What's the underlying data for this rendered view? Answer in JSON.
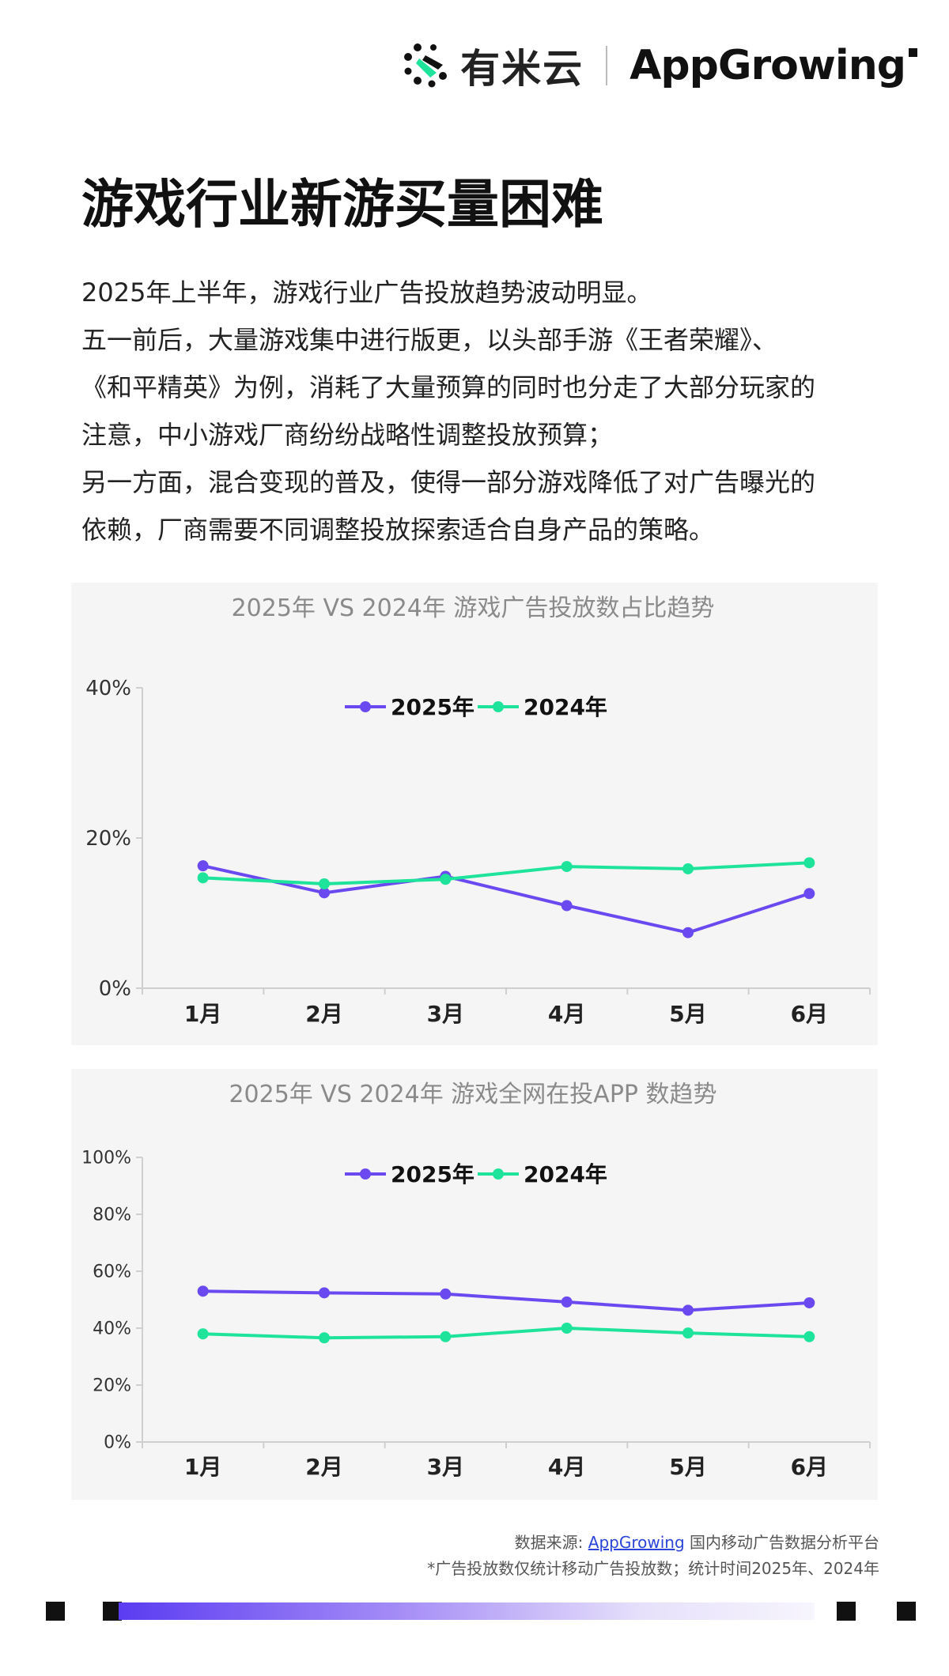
{
  "header": {
    "brand_cn": "有米云",
    "brand_en": "AppGrowing"
  },
  "title": "游戏行业新游买量困难",
  "intro": [
    "2025年上半年，游戏行业广告投放趋势波动明显。",
    "五一前后，大量游戏集中进行版更，以头部手游《王者荣耀》、",
    "《和平精英》为例，消耗了大量预算的同时也分走了大部分玩家的",
    "注意，中小游戏厂商纷纷战略性调整投放预算；",
    "另一方面，混合变现的普及，使得一部分游戏降低了对广告曝光的",
    "依赖，厂商需要不同调整投放探索适合自身产品的策略。"
  ],
  "chart_data": [
    {
      "type": "line",
      "title": "2025年 VS 2024年 游戏广告投放数占比趋势",
      "categories": [
        "1月",
        "2月",
        "3月",
        "4月",
        "5月",
        "6月"
      ],
      "yticks": [
        "0%",
        "20%",
        "40%"
      ],
      "ylim": [
        0,
        40
      ],
      "legend_position": "top-center",
      "grid": false,
      "series": [
        {
          "name": "2025年",
          "color": "#6a4af0",
          "values": [
            16.3,
            12.7,
            14.9,
            11.0,
            7.4,
            12.6
          ]
        },
        {
          "name": "2024年",
          "color": "#1ee39b",
          "values": [
            14.7,
            13.9,
            14.5,
            16.2,
            15.9,
            16.7
          ]
        }
      ]
    },
    {
      "type": "line",
      "title": "2025年 VS 2024年 游戏全网在投APP 数趋势",
      "categories": [
        "1月",
        "2月",
        "3月",
        "4月",
        "5月",
        "6月"
      ],
      "yticks": [
        "0%",
        "20%",
        "40%",
        "60%",
        "80%",
        "100%"
      ],
      "ylim": [
        0,
        100
      ],
      "legend_position": "top-center",
      "grid": false,
      "series": [
        {
          "name": "2025年",
          "color": "#6a4af0",
          "values": [
            53.0,
            52.4,
            52.0,
            49.2,
            46.3,
            48.9
          ]
        },
        {
          "name": "2024年",
          "color": "#1ee39b",
          "values": [
            38.0,
            36.6,
            37.0,
            40.0,
            38.3,
            37.0
          ]
        }
      ]
    }
  ],
  "footer": {
    "source_prefix": "数据来源: ",
    "source_link": "AppGrowing",
    "source_suffix": " 国内移动广告数据分析平台",
    "note": "*广告投放数仅统计移动广告投放数；统计时间2025年、2024年"
  }
}
